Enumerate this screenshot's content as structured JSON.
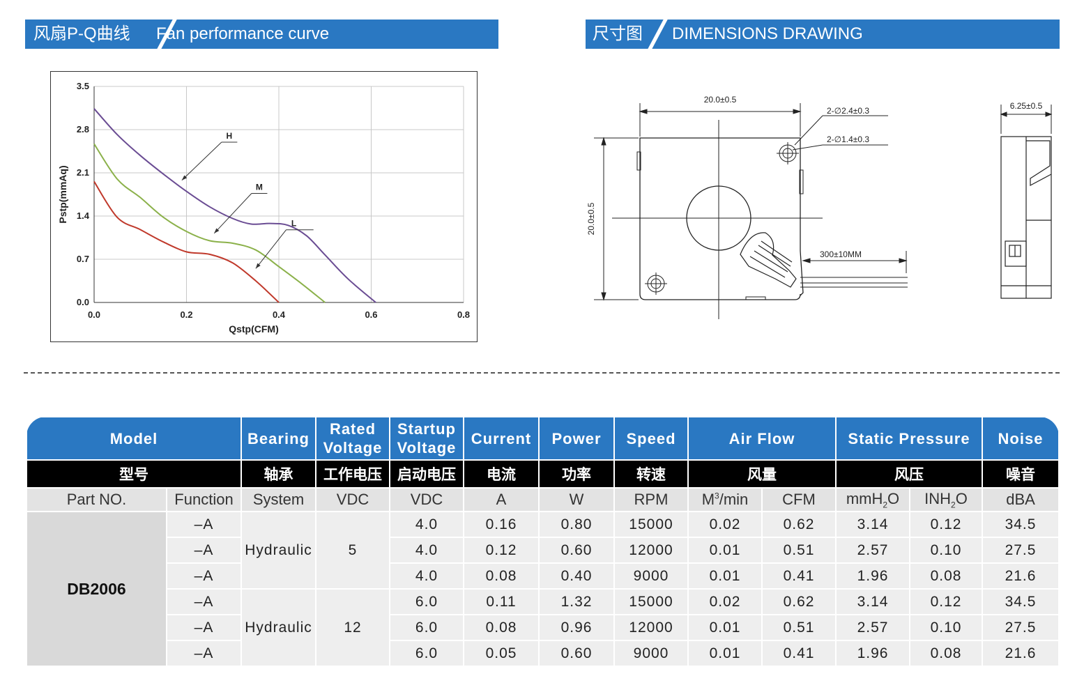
{
  "left_banner": {
    "cn": "风扇P-Q曲线",
    "en": "Fan performance curve"
  },
  "right_banner": {
    "cn": "尺寸图",
    "en": "DIMENSIONS DRAWING"
  },
  "chart_data": {
    "type": "line",
    "xlabel": "Qstp(CFM)",
    "ylabel": "Pstp(mmAq)",
    "xlim": [
      0,
      0.8
    ],
    "ylim": [
      0,
      3.5
    ],
    "xticks": [
      "0.0",
      "0.2",
      "0.4",
      "0.6",
      "0.8"
    ],
    "yticks": [
      "0.0",
      "0.7",
      "1.4",
      "2.1",
      "2.8",
      "3.5"
    ],
    "xtick_values": [
      0,
      0.2,
      0.4,
      0.6,
      0.8
    ],
    "ytick_values": [
      0,
      0.7,
      1.4,
      2.1,
      2.8,
      3.5
    ],
    "grid": true,
    "series": [
      {
        "name": "H",
        "color": "#6a4c93",
        "x": [
          0,
          0.05,
          0.1,
          0.15,
          0.2,
          0.25,
          0.3,
          0.34,
          0.38,
          0.42,
          0.46,
          0.5,
          0.55,
          0.61
        ],
        "y": [
          3.14,
          2.72,
          2.38,
          2.08,
          1.8,
          1.55,
          1.36,
          1.27,
          1.28,
          1.25,
          1.08,
          0.77,
          0.38,
          0.0
        ]
      },
      {
        "name": "M",
        "color": "#8bb14a",
        "x": [
          0,
          0.05,
          0.1,
          0.15,
          0.2,
          0.25,
          0.3,
          0.35,
          0.4,
          0.45,
          0.5
        ],
        "y": [
          2.57,
          2.0,
          1.7,
          1.38,
          1.15,
          1.0,
          0.96,
          0.85,
          0.58,
          0.3,
          0.0
        ]
      },
      {
        "name": "L",
        "color": "#c0392b",
        "x": [
          0,
          0.05,
          0.1,
          0.15,
          0.2,
          0.25,
          0.3,
          0.35,
          0.4
        ],
        "y": [
          1.96,
          1.38,
          1.18,
          0.98,
          0.82,
          0.78,
          0.64,
          0.35,
          0.0
        ]
      }
    ],
    "annotations": [
      {
        "label": "H",
        "x": 0.285,
        "y": 2.71,
        "tx": 0.19,
        "ty": 1.98,
        "line_end_x": 0.31
      },
      {
        "label": "M",
        "x": 0.35,
        "y": 1.88,
        "tx": 0.26,
        "ty": 1.12,
        "line_end_x": 0.375
      },
      {
        "label": "L",
        "x": 0.425,
        "y": 1.29,
        "tx": 0.35,
        "ty": 0.55,
        "line_end_x": 0.475
      }
    ]
  },
  "dimensions": {
    "width": "20.0±0.5",
    "height": "20.0±0.5",
    "hole_outer": "2-∅2.4±0.3",
    "hole_inner": "2-∅1.4±0.3",
    "lead_length": "300±10MM",
    "thickness": "6.25±0.5"
  },
  "table": {
    "header_en": {
      "model": "Model",
      "bearing": "Bearing",
      "rated_1": "Rated",
      "rated_2": "Voltage",
      "startup_1": "Startup",
      "startup_2": "Voltage",
      "current": "Current",
      "power": "Power",
      "speed": "Speed",
      "airflow": "Air Flow",
      "pressure": "Static Pressure",
      "noise": "Noise"
    },
    "header_cn": {
      "model": "型号",
      "bearing": "轴承",
      "rated": "工作电压",
      "startup": "启动电压",
      "current": "电流",
      "power": "功率",
      "speed": "转速",
      "airflow": "风量",
      "pressure": "风压",
      "noise": "噪音"
    },
    "units": {
      "part": "Part NO.",
      "function": "Function",
      "system": "System",
      "vdc1": "VDC",
      "vdc2": "VDC",
      "amp": "A",
      "watt": "W",
      "rpm": "RPM",
      "m3_a": "M",
      "m3_b": "3",
      "m3_c": "/min",
      "cfm": "CFM",
      "mmh2o_a": "mmH",
      "mmh2o_b": "2",
      "mmh2o_c": "O",
      "inh2o_a": "INH",
      "inh2o_b": "2",
      "inh2o_c": "O",
      "dba": "dBA"
    },
    "model": "DB2006",
    "groups": [
      {
        "bearing": "Hydraulic",
        "rated": "5"
      },
      {
        "bearing": "Hydraulic",
        "rated": "12"
      }
    ],
    "rows": [
      [
        "–A",
        "4.0",
        "0.16",
        "0.80",
        "15000",
        "0.02",
        "0.62",
        "3.14",
        "0.12",
        "34.5"
      ],
      [
        "–A",
        "4.0",
        "0.12",
        "0.60",
        "12000",
        "0.01",
        "0.51",
        "2.57",
        "0.10",
        "27.5"
      ],
      [
        "–A",
        "4.0",
        "0.08",
        "0.40",
        "9000",
        "0.01",
        "0.41",
        "1.96",
        "0.08",
        "21.6"
      ],
      [
        "–A",
        "6.0",
        "0.11",
        "1.32",
        "15000",
        "0.02",
        "0.62",
        "3.14",
        "0.12",
        "34.5"
      ],
      [
        "–A",
        "6.0",
        "0.08",
        "0.96",
        "12000",
        "0.01",
        "0.51",
        "2.57",
        "0.10",
        "27.5"
      ],
      [
        "–A",
        "6.0",
        "0.05",
        "0.60",
        "9000",
        "0.01",
        "0.41",
        "1.96",
        "0.08",
        "21.6"
      ]
    ]
  }
}
